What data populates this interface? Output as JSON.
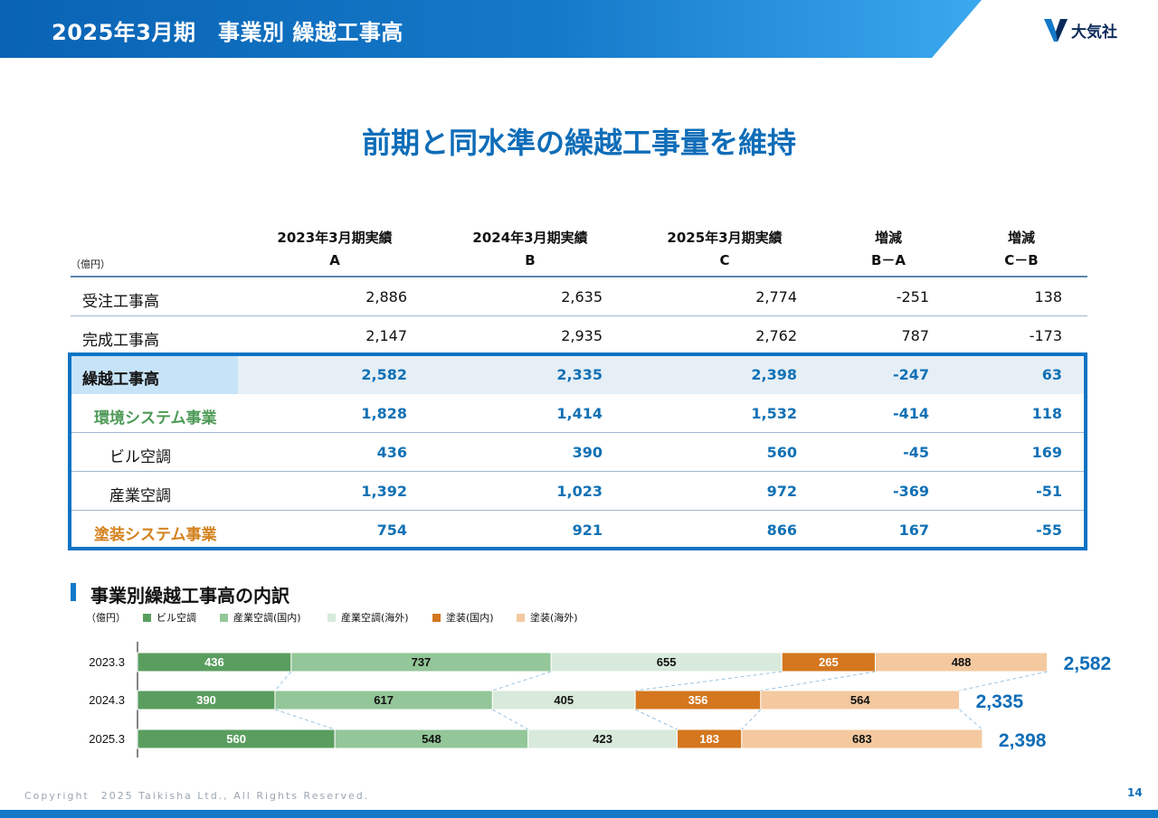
{
  "header": {
    "title": "2025年3月期　事業別 繰越工事高",
    "logo_text": "大気社"
  },
  "headline": "前期と同水準の繰越工事量を維持",
  "table": {
    "unit": "（億円）",
    "columns": [
      {
        "line1": "2023年3月期実績",
        "line2": "A"
      },
      {
        "line1": "2024年3月期実績",
        "line2": "B"
      },
      {
        "line1": "2025年3月期実績",
        "line2": "C"
      },
      {
        "line1": "増減",
        "line2": "B－A"
      },
      {
        "line1": "増減",
        "line2": "C－B"
      }
    ],
    "rows": [
      {
        "label": "受注工事高",
        "values": [
          "2,886",
          "2,635",
          "2,774",
          "-251",
          "138"
        ]
      },
      {
        "label": "完成工事高",
        "values": [
          "2,147",
          "2,935",
          "2,762",
          "787",
          "-173"
        ]
      },
      {
        "label": "繰越工事高",
        "values": [
          "2,582",
          "2,335",
          "2,398",
          "-247",
          "63"
        ]
      },
      {
        "label": "環境システム事業",
        "values": [
          "1,828",
          "1,414",
          "1,532",
          "-414",
          "118"
        ]
      },
      {
        "label": "ビル空調",
        "values": [
          "436",
          "390",
          "560",
          "-45",
          "169"
        ]
      },
      {
        "label": "産業空調",
        "values": [
          "1,392",
          "1,023",
          "972",
          "-369",
          "-51"
        ]
      },
      {
        "label": "塗装システム事業",
        "values": [
          "754",
          "921",
          "866",
          "167",
          "-55"
        ]
      }
    ]
  },
  "breakdown": {
    "title": "事業別繰越工事高の内訳",
    "unit": "（億円）",
    "legend": [
      "ビル空調",
      "産業空調(国内)",
      "産業空調(海外)",
      "塗装(国内)",
      "塗装(海外)"
    ]
  },
  "colors": {
    "bldg": "#5a9e5f",
    "ind_dom": "#93c699",
    "ind_ovs": "#d8eadb",
    "paint_dom": "#d4771f",
    "paint_ovs": "#f4c9a0",
    "accent": "#0f6db8",
    "green_label": "#4e9a58",
    "orange_label": "#d4821e"
  },
  "chart_data": {
    "type": "bar",
    "orientation": "horizontal",
    "stacked": true,
    "categories": [
      "2023.3",
      "2024.3",
      "2025.3"
    ],
    "series": [
      {
        "name": "ビル空調",
        "values": [
          436,
          390,
          560
        ]
      },
      {
        "name": "産業空調(国内)",
        "values": [
          737,
          617,
          548
        ]
      },
      {
        "name": "産業空調(海外)",
        "values": [
          655,
          405,
          423
        ]
      },
      {
        "name": "塗装(国内)",
        "values": [
          265,
          356,
          183
        ]
      },
      {
        "name": "塗装(海外)",
        "values": [
          488,
          564,
          683
        ]
      }
    ],
    "totals": [
      "2,582",
      "2,335",
      "2,398"
    ]
  },
  "footer": {
    "copyright": "Copyright　2025 Taikisha Ltd., All Rights Reserved.",
    "page": "14"
  }
}
